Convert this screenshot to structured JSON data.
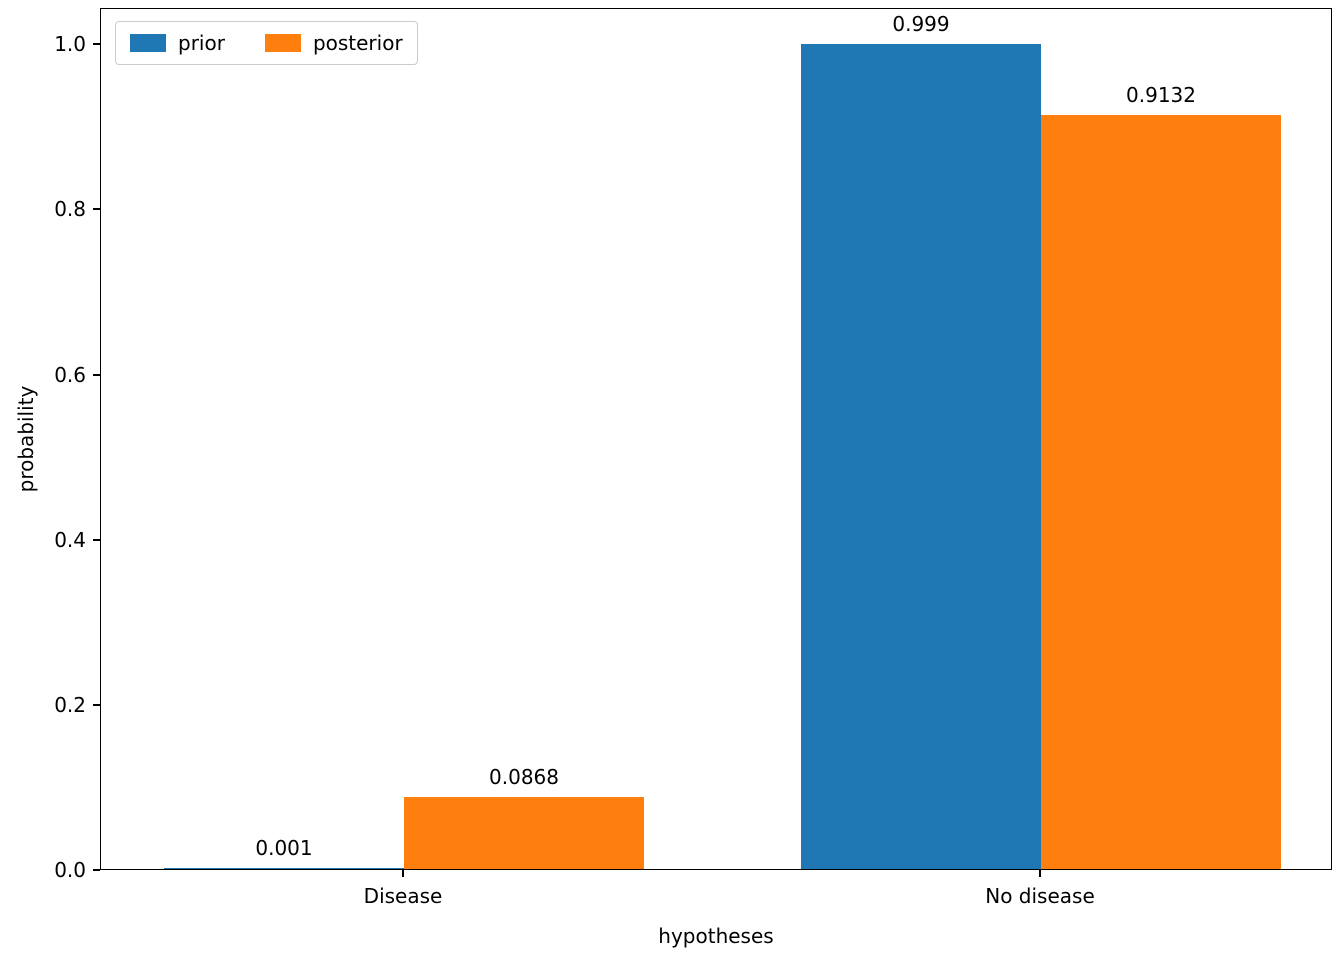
{
  "chart_data": {
    "type": "bar",
    "categories": [
      "Disease",
      "No disease"
    ],
    "series": [
      {
        "name": "prior",
        "color": "#1f77b4",
        "values": [
          0.001,
          0.999
        ],
        "labels": [
          "0.001",
          "0.999"
        ]
      },
      {
        "name": "posterior",
        "color": "#ff7f0e",
        "values": [
          0.0868,
          0.9132
        ],
        "labels": [
          "0.0868",
          "0.9132"
        ]
      }
    ],
    "title": "",
    "xlabel": "hypotheses",
    "ylabel": "probability",
    "ylim": [
      0,
      1.044
    ],
    "yticks": [
      "0.0",
      "0.2",
      "0.4",
      "0.6",
      "0.8",
      "1.0"
    ],
    "grid": false,
    "legend": {
      "position": "upper left",
      "entries": [
        "prior",
        "posterior"
      ]
    }
  }
}
